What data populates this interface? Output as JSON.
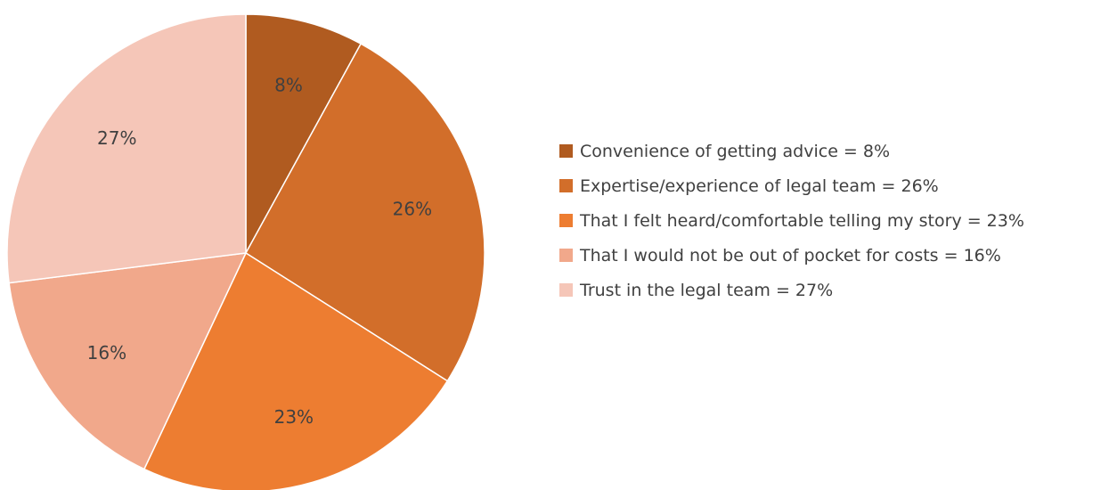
{
  "chart_data": {
    "type": "pie",
    "title": "",
    "start_angle_deg": 0,
    "direction": "clockwise",
    "legend_position": "right",
    "slices": [
      {
        "label": "Convenience of getting advice",
        "value": 8,
        "data_label": "8%",
        "legend_text": "Convenience of getting advice = 8%",
        "color": "#B05B20"
      },
      {
        "label": "Expertise/experience of legal team",
        "value": 26,
        "data_label": "26%",
        "legend_text": "Expertise/experience of legal team = 26%",
        "color": "#D26E2A"
      },
      {
        "label": "That I felt heard/comfortable telling my story",
        "value": 23,
        "data_label": "23%",
        "legend_text": "That I felt heard/comfortable telling my story = 23%",
        "color": "#ED7D31"
      },
      {
        "label": "That I would not be out of pocket for costs",
        "value": 16,
        "data_label": "16%",
        "legend_text": "That I would not be out of pocket for costs = 16%",
        "color": "#F1A88B"
      },
      {
        "label": "Trust in the legal team",
        "value": 27,
        "data_label": "27%",
        "legend_text": "Trust in the legal team = 27%",
        "color": "#F5C6B8"
      }
    ]
  }
}
